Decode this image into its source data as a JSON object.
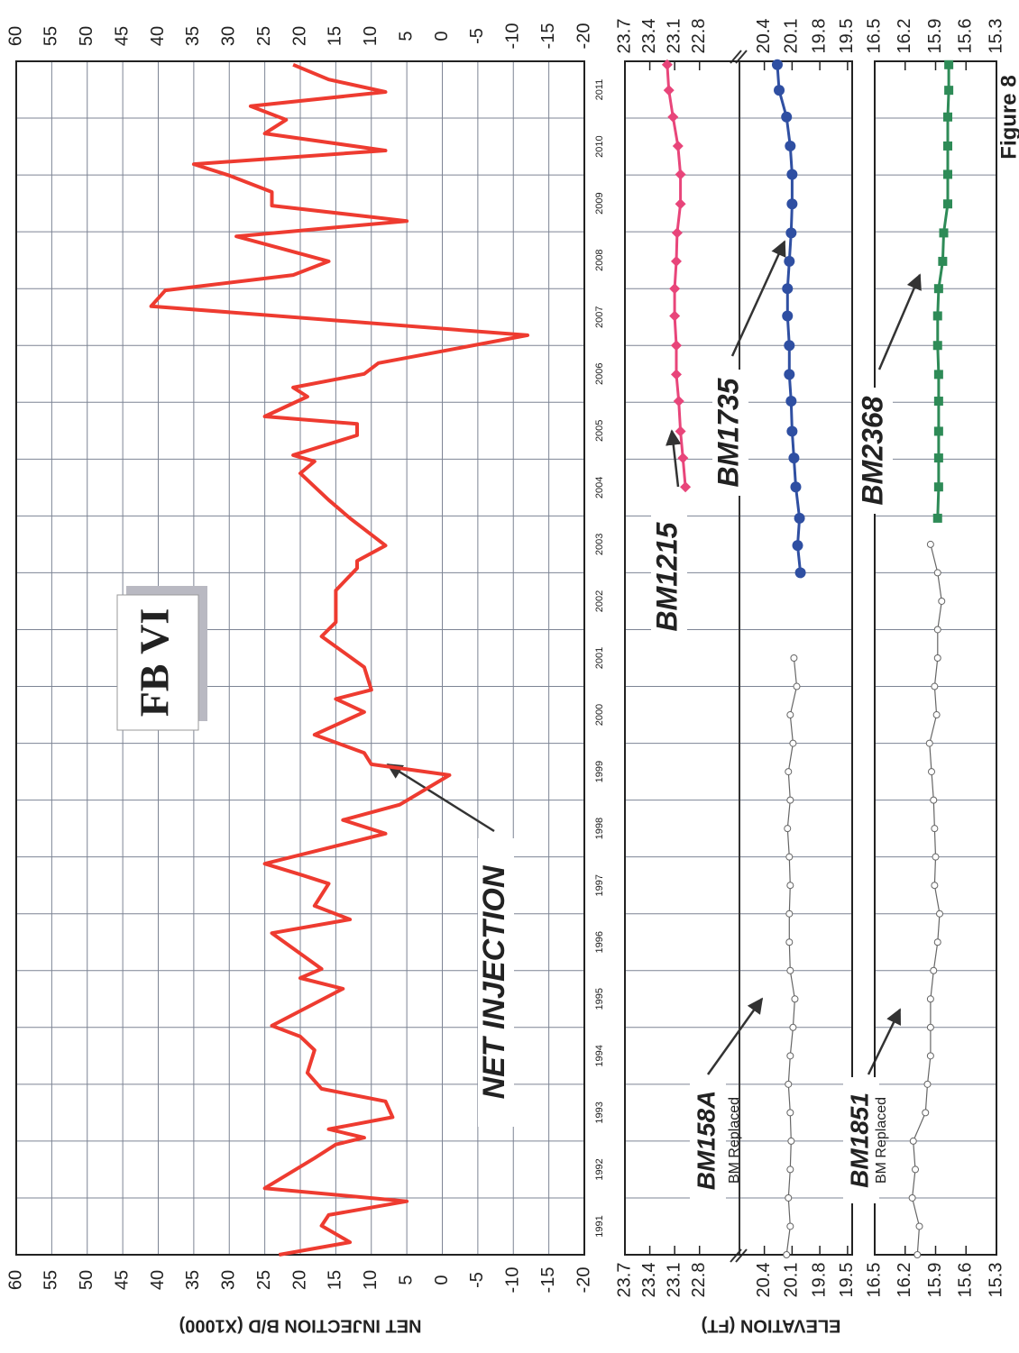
{
  "caption": "Figure 8",
  "chart_data": [
    {
      "type": "line",
      "title": "FB VI",
      "ylabel": "NET INJECTION B/D (X1000)",
      "xlim": [
        1991,
        2012
      ],
      "xticks": [
        1991,
        1992,
        1993,
        1994,
        1995,
        1996,
        1997,
        1998,
        1999,
        2000,
        2001,
        2002,
        2003,
        2004,
        2005,
        2006,
        2007,
        2008,
        2009,
        2010,
        2011
      ],
      "ylim": [
        -20,
        60
      ],
      "yticks": [
        60,
        55,
        50,
        45,
        40,
        35,
        30,
        25,
        20,
        15,
        10,
        5,
        0,
        -5,
        -10,
        -15,
        -20
      ],
      "grid": true,
      "series": [
        {
          "name": "NET INJECTION",
          "color": "#ee3b30",
          "x": [
            1991.0,
            1991.22,
            1991.51,
            1991.7,
            1991.94,
            1992.17,
            1992.7,
            1992.94,
            1993.06,
            1993.21,
            1993.42,
            1993.7,
            1993.92,
            1994.2,
            1994.6,
            1994.84,
            1995.03,
            1995.68,
            1995.87,
            1996.03,
            1996.66,
            1996.9,
            1997.14,
            1997.53,
            1997.69,
            1997.88,
            1998.41,
            1998.65,
            1998.92,
            1999.44,
            1999.63,
            1999.83,
            2000.15,
            2000.55,
            2000.78,
            2000.94,
            2001.34,
            2001.88,
            2002.13,
            2002.69,
            2003.08,
            2003.21,
            2003.48,
            2003.96,
            2004.28,
            2004.75,
            2004.96,
            2005.07,
            2005.42,
            2005.62,
            2005.75,
            2006.1,
            2006.26,
            2006.5,
            2006.69,
            2007.18,
            2007.69,
            2007.97,
            2008.24,
            2008.48,
            2008.92,
            2009.19,
            2009.46,
            2009.7,
            2009.99,
            2010.19,
            2010.43,
            2010.73,
            2010.97,
            2011.21,
            2011.46,
            2011.68,
            2011.94
          ],
          "values": [
            23,
            13,
            17,
            16,
            5,
            25,
            18,
            15,
            11,
            16,
            7,
            8,
            17,
            19,
            18,
            20,
            24,
            14,
            20,
            17,
            24,
            13,
            18,
            16,
            20,
            25,
            8,
            14,
            6,
            -1,
            10,
            11,
            18,
            11,
            15,
            10,
            11,
            17,
            15,
            15,
            12,
            12,
            8,
            13,
            16,
            20,
            18,
            21,
            12,
            12,
            25,
            19,
            21,
            11,
            9,
            -12,
            41,
            39,
            21,
            16,
            29,
            5,
            24,
            24,
            30,
            35,
            8,
            25,
            22,
            27,
            8,
            16,
            21
          ]
        }
      ]
    },
    {
      "type": "line",
      "ylabel": "ELEVATION (FT)",
      "xlim": [
        1991,
        2012
      ],
      "ylim": [
        22.34,
        23.7
      ],
      "yticks": [
        23.7,
        23.4,
        23.1,
        22.8
      ],
      "y2lim": [
        19.45,
        20.65
      ],
      "y2ticks": [
        20.4,
        20.1,
        19.8,
        19.5
      ],
      "series": [
        {
          "name": "BM1215",
          "color": "#e8457a",
          "marker": "diamond",
          "x": [
            2004.51,
            2005.02,
            2005.49,
            2006.02,
            2006.49,
            2007.0,
            2007.52,
            2008.0,
            2008.48,
            2008.98,
            2009.49,
            2010.01,
            2010.51,
            2011.02,
            2011.49,
            2011.94
          ],
          "values": [
            22.97,
            23.0,
            23.03,
            23.05,
            23.08,
            23.08,
            23.1,
            23.1,
            23.08,
            23.07,
            23.03,
            23.03,
            23.06,
            23.12,
            23.17,
            23.19
          ]
        },
        {
          "name": "BM1735",
          "color": "#2f4fa2",
          "marker": "circle",
          "axis": "y2",
          "x": [
            2003.0,
            2003.48,
            2003.96,
            2004.51,
            2005.02,
            2005.49,
            2006.02,
            2006.49,
            2007.0,
            2007.52,
            2008.0,
            2008.48,
            2008.98,
            2009.49,
            2010.01,
            2010.51,
            2011.02,
            2011.49,
            2011.94
          ],
          "values": [
            20.01,
            20.04,
            20.02,
            20.06,
            20.08,
            20.1,
            20.11,
            20.13,
            20.13,
            20.15,
            20.15,
            20.13,
            20.11,
            20.1,
            20.1,
            20.12,
            20.16,
            20.24,
            20.26
          ]
        },
        {
          "name": "BM158A",
          "note": "BM Replaced",
          "color": "#666666",
          "marker": "open-circle",
          "axis": "y2",
          "x": [
            1991.0,
            1991.5,
            1992.0,
            1992.5,
            1993.0,
            1993.5,
            1994.0,
            1994.5,
            1995.0,
            1995.5,
            1996.0,
            1996.5,
            1997.0,
            1997.5,
            1998.0,
            1998.5,
            1999.0,
            1999.5,
            2000.0,
            2000.5,
            2001.0,
            2001.5
          ],
          "values": [
            20.16,
            20.12,
            20.14,
            20.12,
            20.11,
            20.12,
            20.14,
            20.12,
            20.09,
            20.07,
            20.12,
            20.13,
            20.13,
            20.12,
            20.13,
            20.15,
            20.12,
            20.14,
            20.09,
            20.12,
            20.05,
            20.08
          ]
        }
      ]
    },
    {
      "type": "line",
      "xlim": [
        1991,
        2012
      ],
      "ylim": [
        15.3,
        16.5
      ],
      "yticks": [
        16.5,
        16.2,
        15.9,
        15.6,
        15.3
      ],
      "series": [
        {
          "name": "BM2368",
          "color": "#2e8b57",
          "marker": "square",
          "x": [
            2003.96,
            2004.51,
            2005.02,
            2005.49,
            2006.02,
            2006.49,
            2007.0,
            2007.52,
            2008.0,
            2008.48,
            2008.98,
            2009.49,
            2010.01,
            2010.51,
            2011.02,
            2011.49,
            2011.94
          ],
          "values": [
            15.88,
            15.87,
            15.87,
            15.87,
            15.87,
            15.87,
            15.88,
            15.88,
            15.87,
            15.83,
            15.82,
            15.78,
            15.78,
            15.78,
            15.78,
            15.77,
            15.77
          ]
        },
        {
          "name": "BM1851",
          "note": "BM Replaced",
          "color": "#666666",
          "marker": "open-circle",
          "x": [
            1991.0,
            1991.5,
            1992.0,
            1992.5,
            1993.0,
            1993.5,
            1994.0,
            1994.5,
            1995.0,
            1995.5,
            1996.0,
            1996.5,
            1997.0,
            1997.5,
            1998.0,
            1998.5,
            1999.0,
            1999.5,
            2000.0,
            2000.5,
            2001.0,
            2001.5,
            2002.0,
            2002.5,
            2003.0,
            2003.5
          ],
          "values": [
            16.08,
            16.06,
            16.13,
            16.1,
            16.12,
            16.0,
            15.98,
            15.95,
            15.95,
            15.95,
            15.92,
            15.88,
            15.86,
            15.91,
            15.9,
            15.91,
            15.92,
            15.94,
            15.96,
            15.89,
            15.91,
            15.88,
            15.88,
            15.84,
            15.88,
            15.95
          ]
        }
      ]
    }
  ]
}
